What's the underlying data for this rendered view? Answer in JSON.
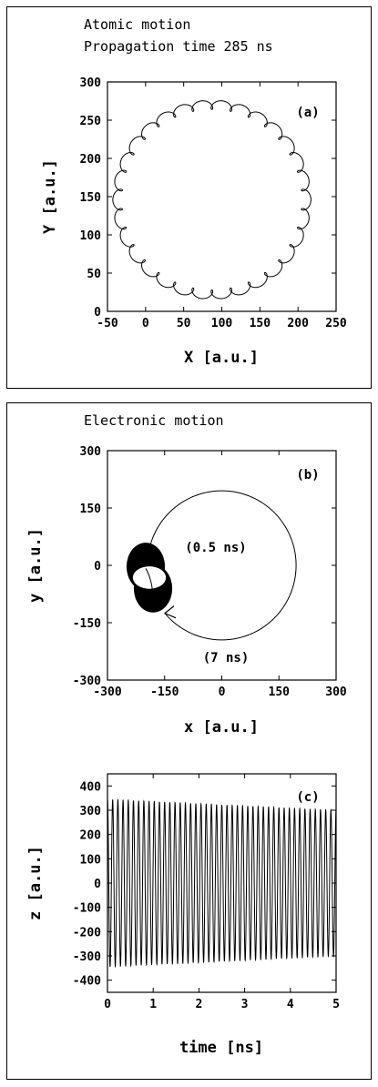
{
  "header_atomic_line1": "Atomic motion",
  "header_atomic_line2": "Propagation time 285 ns",
  "header_electronic": "Electronic motion",
  "chart_data": [
    {
      "type": "line",
      "panel_label": "(a)",
      "xlabel": "X [a.u.]",
      "ylabel": "Y [a.u.]",
      "xlim": [
        -50,
        250
      ],
      "ylim": [
        0,
        300
      ],
      "xticks": [
        "-50",
        "0",
        "50",
        "100",
        "150",
        "200",
        "250"
      ],
      "yticks": [
        "0",
        "50",
        "100",
        "150",
        "200",
        "250",
        "300"
      ],
      "trajectory": {
        "description": "epicyclic circular orbit",
        "center": [
          87,
          146
        ],
        "radius": 124,
        "loops": 31,
        "loop_radius": 6
      }
    },
    {
      "type": "line",
      "panel_label": "(b)",
      "xlabel": "x [a.u.]",
      "ylabel": "y [a.u.]",
      "xlim": [
        -300,
        300
      ],
      "ylim": [
        -300,
        300
      ],
      "xticks": [
        "-300",
        "-150",
        "0",
        "150",
        "300"
      ],
      "yticks": [
        "-300",
        "-150",
        "0",
        "150",
        "300"
      ],
      "annotations": [
        "(0.5 ns)",
        "(7 ns)"
      ],
      "trajectory": {
        "description": "guiding-centre drift",
        "center": [
          0,
          0
        ],
        "radius": 195,
        "start_angle_deg": 180,
        "end_angle_deg": 220,
        "fast_orbit_center": [
          -190,
          -32
        ],
        "fast_orbit_radius": 70
      }
    },
    {
      "type": "line",
      "panel_label": "(c)",
      "xlabel": "time [ns]",
      "ylabel": "z [a.u.]",
      "xlim": [
        0,
        5
      ],
      "ylim": [
        -450,
        450
      ],
      "xticks": [
        "0",
        "1",
        "2",
        "3",
        "4",
        "5"
      ],
      "yticks": [
        "-400",
        "-300",
        "-200",
        "-100",
        "0",
        "100",
        "200",
        "300",
        "400"
      ],
      "oscillation": {
        "cycles": 44,
        "amplitude_start": 345,
        "amplitude_end": 300
      }
    }
  ]
}
